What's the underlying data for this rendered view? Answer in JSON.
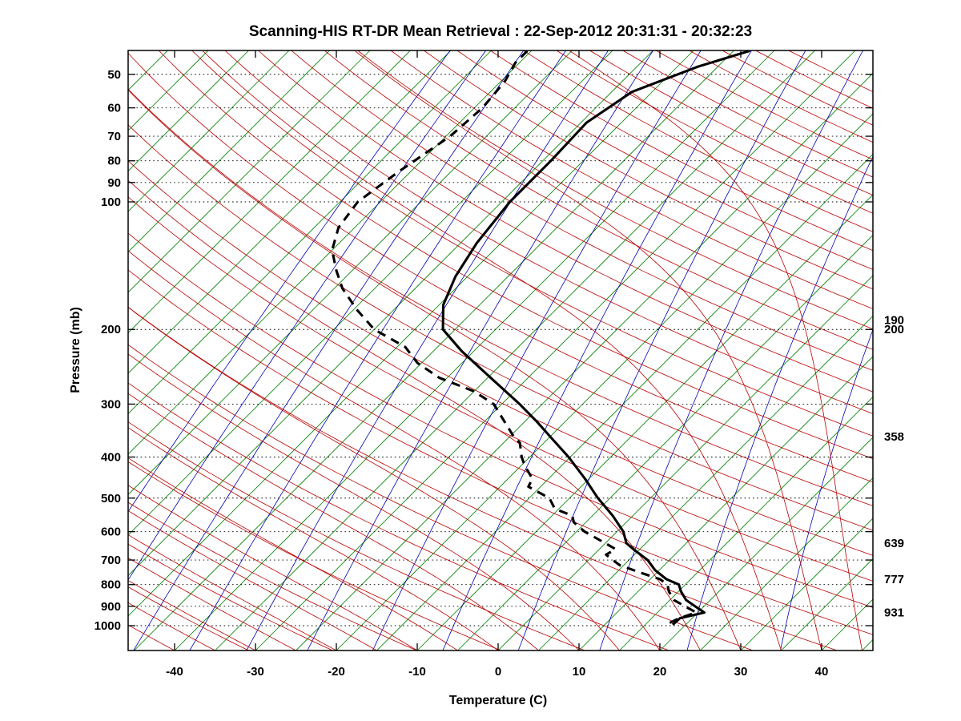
{
  "title": "Scanning-HIS RT-DR Mean Retrieval : 22-Sep-2012 20:31:31 - 20:32:23",
  "axes": {
    "x_label": "Temperature (C)",
    "y_label": "Pressure (mb)",
    "x_ticks": [
      -40,
      -30,
      -20,
      -10,
      0,
      10,
      20,
      30,
      40
    ],
    "y_ticks": [
      50,
      60,
      70,
      80,
      90,
      100,
      200,
      300,
      400,
      500,
      600,
      700,
      800,
      900,
      1000
    ],
    "skew_degrees": 45,
    "pressure_range_mb": [
      44,
      1144
    ],
    "temperature_range_c": [
      -45.7,
      46.3
    ]
  },
  "right_pressure_labels": [
    190,
    200,
    358,
    639,
    777,
    931
  ],
  "background": {
    "grid_color": "#000000",
    "isotherms": {
      "color": "#008200",
      "start_c": -125,
      "end_c": 45,
      "step_c": 5
    },
    "mixing_ratio_lines": {
      "color": "#0000bb",
      "values_g_kg": [
        0.015,
        0.03,
        0.06,
        0.125,
        0.25,
        0.5,
        1,
        2,
        4,
        8,
        16,
        32,
        64
      ]
    },
    "dry_adiabats": {
      "color": "#bb0000",
      "start_c": -40,
      "end_c": 300,
      "step_c": 10
    },
    "moist_adiabats": {
      "color": "#bb0000",
      "start_c": -40,
      "end_c": 45,
      "step_c": 5
    }
  },
  "chart_data": {
    "type": "line",
    "title": "Scanning-HIS RT-DR Mean Retrieval : 22-Sep-2012 20:31:31 - 20:32:23",
    "xlabel": "Temperature (C)",
    "ylabel": "Pressure (mb)",
    "x_range": [
      -45.7,
      46.3
    ],
    "y_range_log_mb": [
      1144,
      44
    ],
    "grid": "horizontal-dotted",
    "legend": "none",
    "series": [
      {
        "name": "temperature",
        "line": "solid",
        "color": "#000000",
        "points_p_t": [
          [
            995,
            18.4
          ],
          [
            960,
            18.5
          ],
          [
            931,
            20.8
          ],
          [
            905,
            19.2
          ],
          [
            870,
            17.0
          ],
          [
            830,
            15.3
          ],
          [
            800,
            14.2
          ],
          [
            777,
            12.0
          ],
          [
            740,
            9.5
          ],
          [
            700,
            7.3
          ],
          [
            660,
            4.2
          ],
          [
            639,
            2.6
          ],
          [
            600,
            0.8
          ],
          [
            550,
            -2.5
          ],
          [
            500,
            -6.5
          ],
          [
            450,
            -10.5
          ],
          [
            400,
            -15.2
          ],
          [
            358,
            -20.0
          ],
          [
            330,
            -23.5
          ],
          [
            300,
            -27.8
          ],
          [
            250,
            -36.5
          ],
          [
            225,
            -41.5
          ],
          [
            200,
            -46.5
          ],
          [
            175,
            -49.5
          ],
          [
            150,
            -51.5
          ],
          [
            125,
            -53.0
          ],
          [
            100,
            -54.0
          ],
          [
            80,
            -54.0
          ],
          [
            65,
            -54.3
          ],
          [
            55,
            -52.5
          ],
          [
            48,
            -47.5
          ],
          [
            44,
            -43.0
          ]
        ]
      },
      {
        "name": "dewpoint",
        "line": "dashed",
        "color": "#000000",
        "points_p_t": [
          [
            985,
            17.8
          ],
          [
            960,
            18.4
          ],
          [
            931,
            19.8
          ],
          [
            905,
            18.0
          ],
          [
            870,
            15.5
          ],
          [
            830,
            13.8
          ],
          [
            800,
            12.8
          ],
          [
            777,
            11.2
          ],
          [
            750,
            8.0
          ],
          [
            720,
            4.5
          ],
          [
            700,
            3.0
          ],
          [
            680,
            1.5
          ],
          [
            660,
            2.0
          ],
          [
            639,
            0.0
          ],
          [
            600,
            -4.0
          ],
          [
            570,
            -6.5
          ],
          [
            550,
            -7.5
          ],
          [
            530,
            -10.5
          ],
          [
            500,
            -12.5
          ],
          [
            470,
            -16.5
          ],
          [
            450,
            -17.0
          ],
          [
            420,
            -19.5
          ],
          [
            400,
            -21.0
          ],
          [
            370,
            -23.0
          ],
          [
            358,
            -24.5
          ],
          [
            330,
            -27.5
          ],
          [
            300,
            -31.0
          ],
          [
            280,
            -35.0
          ],
          [
            260,
            -41.0
          ],
          [
            240,
            -45.5
          ],
          [
            220,
            -49.0
          ],
          [
            200,
            -55.0
          ],
          [
            180,
            -59.5
          ],
          [
            160,
            -64.0
          ],
          [
            145,
            -67.0
          ],
          [
            130,
            -70.0
          ],
          [
            115,
            -72.0
          ],
          [
            100,
            -72.8
          ],
          [
            85,
            -71.5
          ],
          [
            70,
            -69.5
          ],
          [
            60,
            -69.0
          ],
          [
            52,
            -69.5
          ],
          [
            47,
            -70.5
          ],
          [
            44,
            -70.5
          ]
        ]
      }
    ]
  }
}
